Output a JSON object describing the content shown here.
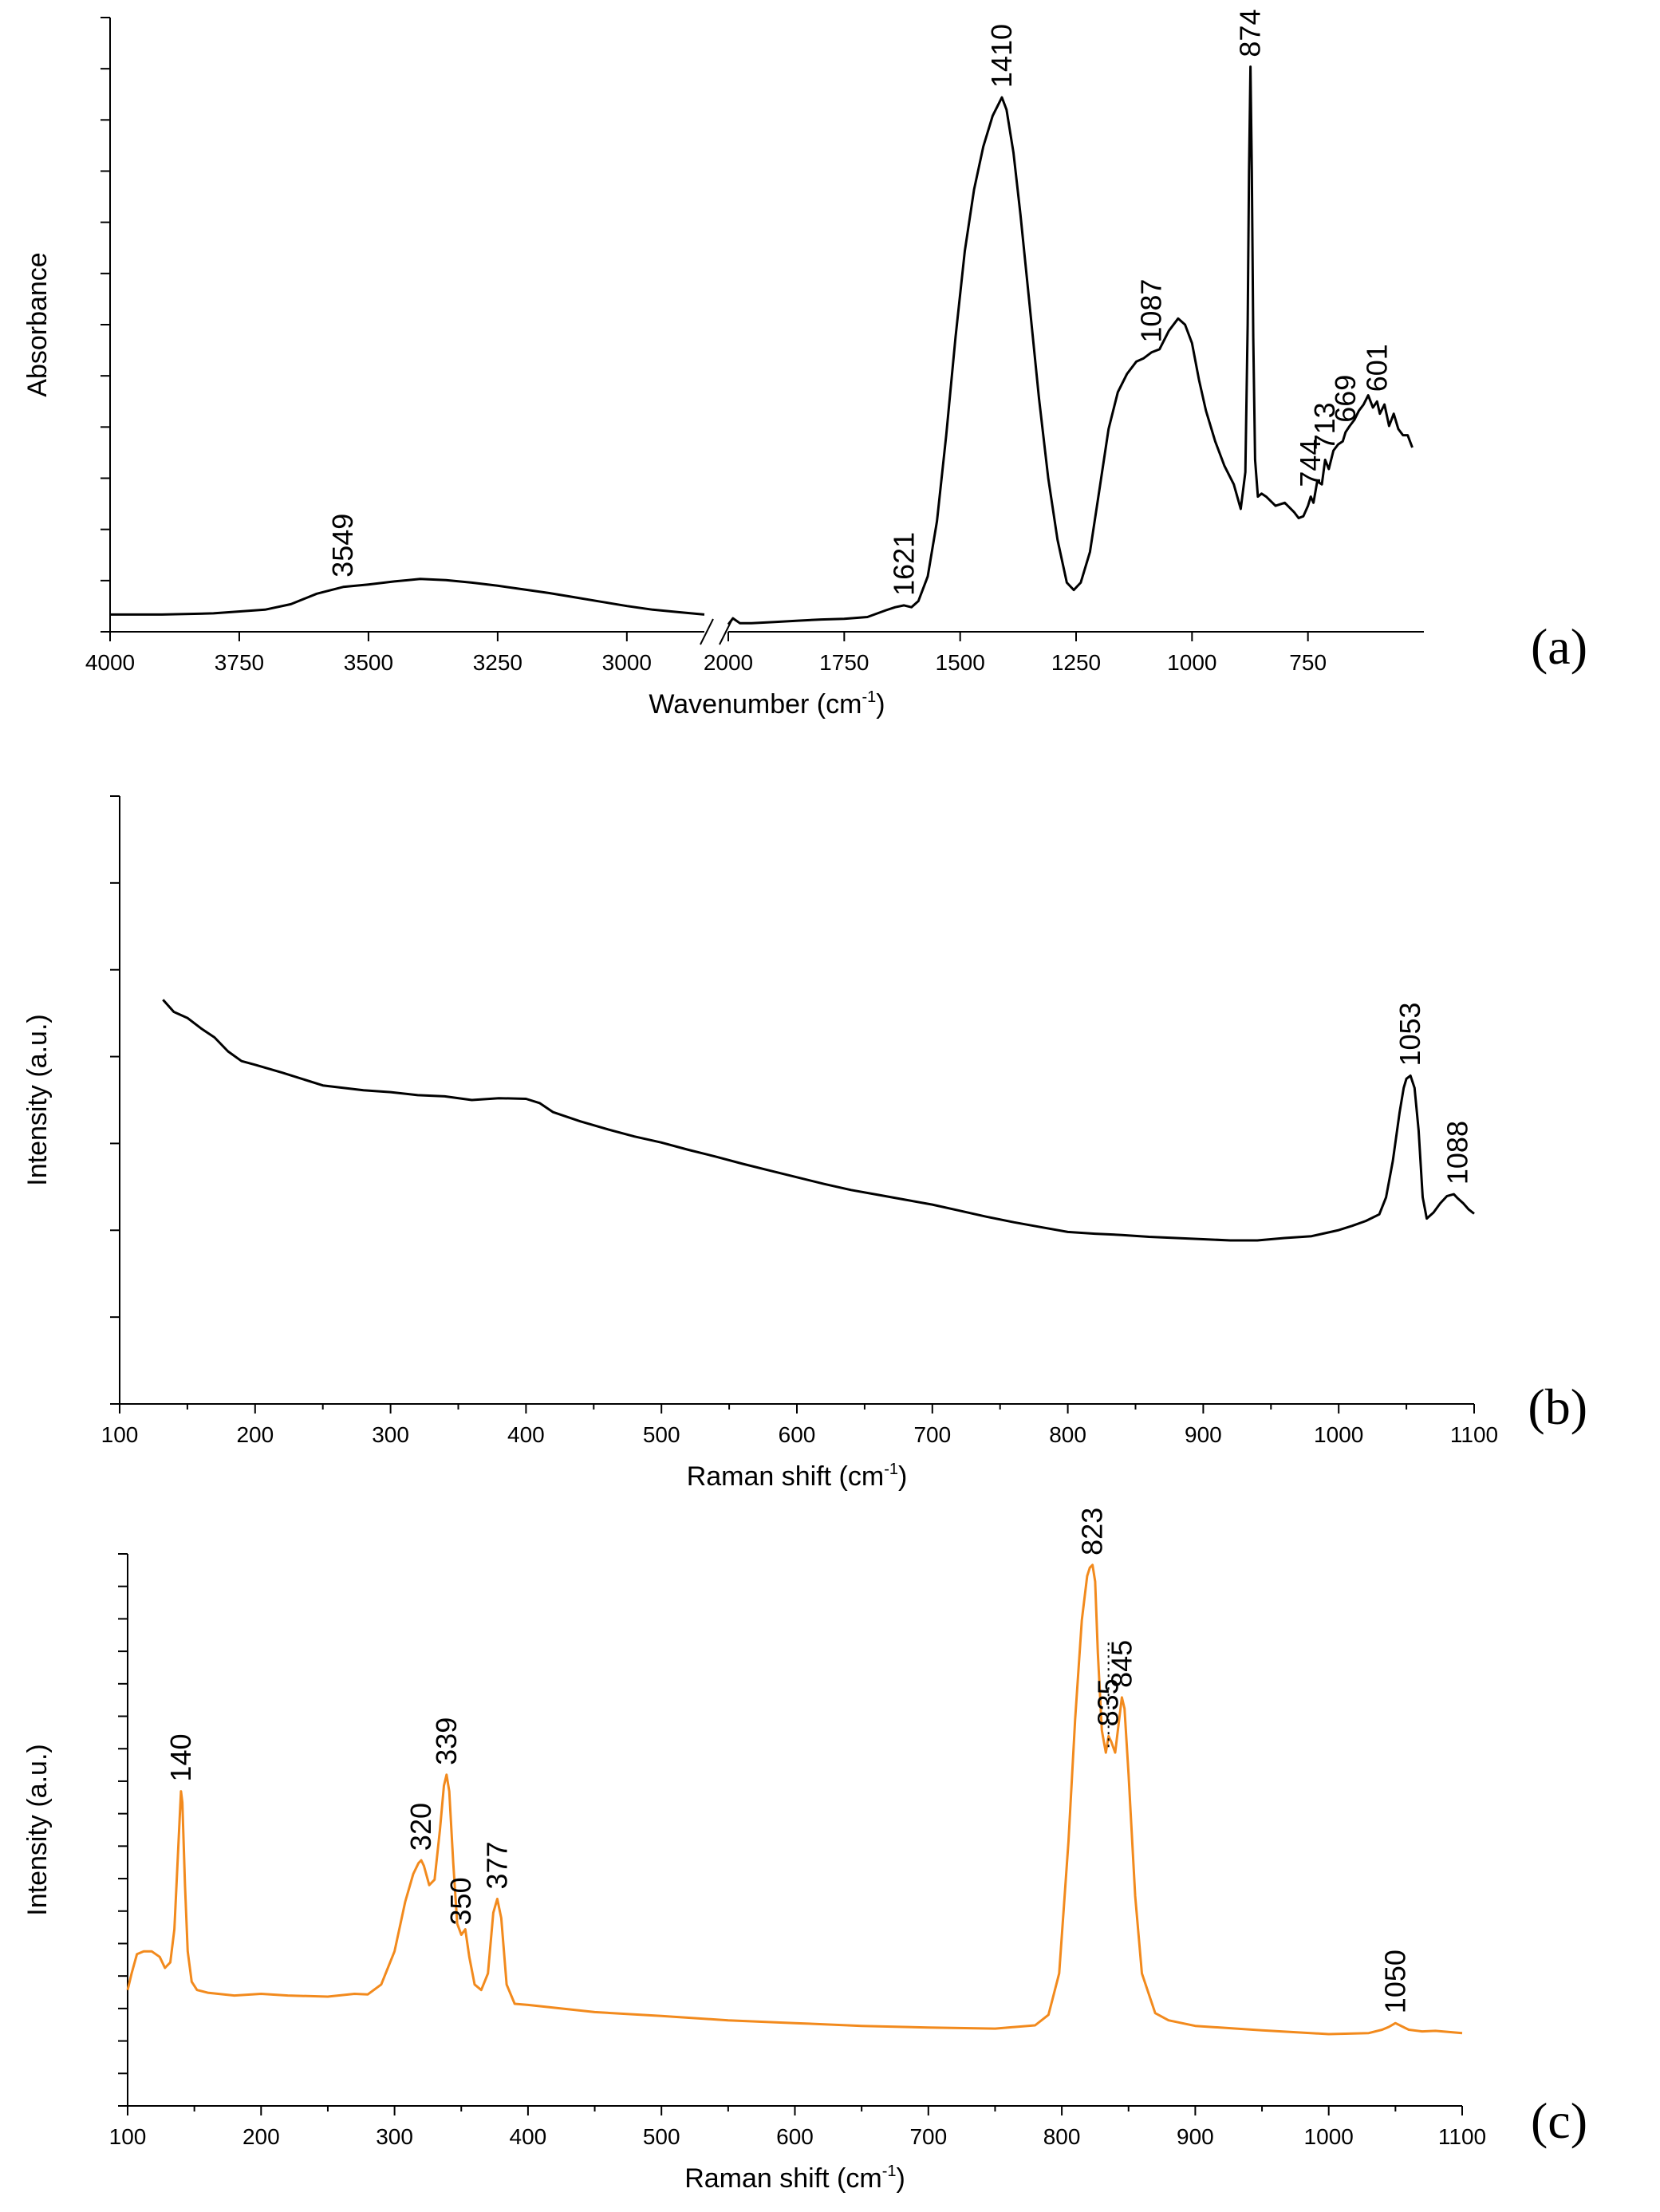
{
  "chart_data": [
    {
      "id": "a",
      "type": "line",
      "panel_label": "(a)",
      "xlabel": "Wavenumber (cm",
      "xlabel_sup": "-1",
      "xlabel_tail": ")",
      "ylabel": "Absorbance",
      "color": "#000000",
      "xlim": [
        4000,
        500
      ],
      "axis_break": [
        2850,
        2000
      ],
      "ylim": [
        0,
        100
      ],
      "y_minor_tick_count": 12,
      "x_ticks": [
        4000,
        3750,
        3500,
        3250,
        3000,
        2000,
        1750,
        1500,
        1250,
        1000,
        750
      ],
      "x_tick_labels": [
        "4000",
        "3750",
        "3500",
        "3250",
        "3000",
        "2000",
        "1750",
        "1500",
        "1250",
        "1000",
        "750"
      ],
      "series": [
        {
          "name": "FTIR spectrum",
          "x": [
            4000,
            3900,
            3800,
            3700,
            3650,
            3600,
            3549,
            3500,
            3450,
            3400,
            3350,
            3300,
            3250,
            3200,
            3150,
            3100,
            3050,
            3000,
            2950,
            2900,
            2850
          ],
          "y": [
            2.8,
            2.8,
            3.0,
            3.6,
            4.5,
            6.2,
            7.3,
            7.7,
            8.2,
            8.6,
            8.4,
            8.0,
            7.5,
            6.9,
            6.3,
            5.6,
            4.9,
            4.2,
            3.6,
            3.2,
            2.8
          ]
        },
        {
          "name": "FTIR spectrum (low range)",
          "x": [
            2000,
            1990,
            1975,
            1950,
            1900,
            1850,
            1800,
            1750,
            1700,
            1660,
            1640,
            1621,
            1605,
            1590,
            1570,
            1550,
            1530,
            1510,
            1490,
            1470,
            1450,
            1430,
            1410,
            1400,
            1385,
            1370,
            1350,
            1330,
            1310,
            1290,
            1270,
            1255,
            1240,
            1220,
            1200,
            1180,
            1160,
            1140,
            1120,
            1105,
            1087,
            1070,
            1050,
            1030,
            1015,
            1000,
            985,
            970,
            950,
            930,
            910,
            895,
            885,
            880,
            877,
            874,
            871,
            868,
            864,
            858,
            850,
            840,
            820,
            800,
            780,
            770,
            760,
            750,
            744,
            738,
            730,
            720,
            713,
            705,
            695,
            685,
            675,
            669,
            660,
            650,
            640,
            630,
            620,
            610,
            601,
            595,
            585,
            575,
            565,
            555,
            545,
            535,
            525
          ],
          "y": [
            1.2,
            2.2,
            1.4,
            1.4,
            1.6,
            1.8,
            2.0,
            2.1,
            2.4,
            3.5,
            4.0,
            4.3,
            4.0,
            5.0,
            9.0,
            18.0,
            32.0,
            48.0,
            62.0,
            72.0,
            79.0,
            84.0,
            87.0,
            85.0,
            78.0,
            68.0,
            53.0,
            38.0,
            25.0,
            15.0,
            8.0,
            6.8,
            8.0,
            13.0,
            23.0,
            33.0,
            39.0,
            42.0,
            44.0,
            44.5,
            45.5,
            46.0,
            49.0,
            51.0,
            50.0,
            47.0,
            41.0,
            36.0,
            31.0,
            27.0,
            24.0,
            20.0,
            26.0,
            50.0,
            75.0,
            92.0,
            75.0,
            48.0,
            28.0,
            22.0,
            22.5,
            22.0,
            20.5,
            21.0,
            19.5,
            18.5,
            18.8,
            20.5,
            22.0,
            21.0,
            24.5,
            24.0,
            28.0,
            26.5,
            29.5,
            30.5,
            31.0,
            32.5,
            33.5,
            34.5,
            36.0,
            37.0,
            38.5,
            36.5,
            37.5,
            35.5,
            37.0,
            33.5,
            35.5,
            33.0,
            32.0,
            32.0,
            30.0
          ]
        }
      ],
      "peak_labels": [
        {
          "x": 3549,
          "y": 7.3,
          "text": "3549"
        },
        {
          "x": 1621,
          "y": 4.3,
          "text": "1621"
        },
        {
          "x": 1410,
          "y": 87.0,
          "text": "1410"
        },
        {
          "x": 1087,
          "y": 45.5,
          "text": "1087"
        },
        {
          "x": 874,
          "y": 92.0,
          "text": "874"
        },
        {
          "x": 744,
          "y": 22.0,
          "text": "744"
        },
        {
          "x": 713,
          "y": 28.0,
          "text": "713"
        },
        {
          "x": 669,
          "y": 32.5,
          "text": "669"
        },
        {
          "x": 601,
          "y": 37.5,
          "text": "601"
        }
      ]
    },
    {
      "id": "b",
      "type": "line",
      "panel_label": "(b)",
      "xlabel": "Raman shift (cm",
      "xlabel_sup": "-1",
      "xlabel_tail": ")",
      "ylabel": "Intensity (a.u.)",
      "color": "#000000",
      "xlim": [
        100,
        1100
      ],
      "ylim": [
        0,
        100
      ],
      "y_minor_tick_count": 7,
      "x_ticks": [
        100,
        200,
        300,
        400,
        500,
        600,
        700,
        800,
        900,
        1000,
        1100
      ],
      "x_tick_labels": [
        "100",
        "200",
        "300",
        "400",
        "500",
        "600",
        "700",
        "800",
        "900",
        "1000",
        "1100"
      ],
      "series": [
        {
          "name": "Raman spectrum",
          "x": [
            132,
            140,
            150,
            160,
            170,
            180,
            190,
            200,
            220,
            250,
            280,
            300,
            320,
            340,
            360,
            380,
            400,
            410,
            420,
            440,
            460,
            480,
            500,
            520,
            540,
            560,
            580,
            600,
            620,
            640,
            660,
            680,
            700,
            720,
            740,
            760,
            780,
            800,
            820,
            840,
            860,
            880,
            900,
            920,
            940,
            960,
            980,
            1000,
            1010,
            1020,
            1030,
            1035,
            1040,
            1045,
            1048,
            1050,
            1053,
            1056,
            1059,
            1062,
            1065,
            1070,
            1075,
            1080,
            1085,
            1088,
            1092,
            1096,
            1100
          ],
          "y": [
            66.5,
            64.5,
            63.5,
            61.8,
            60.3,
            58.0,
            56.4,
            55.8,
            54.5,
            52.4,
            51.6,
            51.3,
            50.8,
            50.6,
            50.0,
            50.3,
            50.2,
            49.5,
            48.0,
            46.5,
            45.2,
            44.0,
            43.0,
            41.8,
            40.7,
            39.5,
            38.4,
            37.3,
            36.2,
            35.2,
            34.4,
            33.6,
            32.8,
            31.8,
            30.8,
            29.9,
            29.1,
            28.3,
            28.0,
            27.8,
            27.5,
            27.3,
            27.1,
            26.9,
            26.9,
            27.3,
            27.6,
            28.6,
            29.3,
            30.1,
            31.2,
            34.0,
            40.0,
            48.0,
            52.0,
            53.5,
            54.0,
            52.0,
            45.0,
            34.0,
            30.5,
            31.5,
            33.0,
            34.2,
            34.5,
            33.8,
            33.0,
            32.0,
            31.3
          ]
        }
      ],
      "peak_labels": [
        {
          "x": 1053,
          "y": 54.0,
          "text": "1053"
        },
        {
          "x": 1088,
          "y": 34.5,
          "text": "1088"
        }
      ]
    },
    {
      "id": "c",
      "type": "line",
      "panel_label": "(c)",
      "xlabel": "Raman shift (cm",
      "xlabel_sup": "-1",
      "xlabel_tail": ")",
      "ylabel": "Intensity (a.u.)",
      "color": "#f28a1d",
      "xlim": [
        100,
        1100
      ],
      "ylim": [
        0,
        100
      ],
      "y_minor_tick_count": 17,
      "x_ticks": [
        100,
        200,
        300,
        400,
        500,
        600,
        700,
        800,
        900,
        1000,
        1100
      ],
      "x_tick_labels": [
        "100",
        "200",
        "300",
        "400",
        "500",
        "600",
        "700",
        "800",
        "900",
        "1000",
        "1100"
      ],
      "series": [
        {
          "name": "Raman spectrum (orange)",
          "x": [
            100,
            103,
            107,
            112,
            118,
            124,
            128,
            132,
            135,
            137,
            139,
            140,
            141,
            143,
            145,
            148,
            152,
            160,
            180,
            200,
            220,
            250,
            270,
            280,
            290,
            300,
            308,
            314,
            318,
            320,
            322,
            326,
            330,
            334,
            337,
            339,
            341,
            344,
            347,
            350,
            353,
            356,
            360,
            365,
            370,
            374,
            377,
            380,
            384,
            390,
            400,
            450,
            500,
            550,
            600,
            650,
            700,
            750,
            780,
            790,
            798,
            805,
            810,
            815,
            819,
            821,
            823,
            825,
            827,
            830,
            833,
            835,
            837,
            840,
            843,
            845,
            847,
            850,
            855,
            860,
            870,
            880,
            900,
            950,
            1000,
            1030,
            1040,
            1045,
            1050,
            1055,
            1060,
            1070,
            1080,
            1100
          ],
          "y": [
            21.0,
            24.0,
            27.5,
            28.0,
            28.0,
            27.0,
            25.0,
            26.0,
            32.0,
            42.0,
            52.0,
            57.0,
            55.0,
            40.0,
            28.0,
            22.5,
            21.0,
            20.5,
            20.0,
            20.3,
            20.0,
            19.8,
            20.3,
            20.2,
            22.0,
            28.0,
            37.0,
            42.0,
            44.0,
            44.5,
            43.5,
            40.0,
            41.0,
            50.0,
            58.0,
            60.0,
            57.0,
            44.0,
            33.0,
            31.0,
            32.0,
            27.0,
            22.0,
            21.0,
            24.0,
            35.0,
            37.5,
            34.0,
            22.0,
            18.5,
            18.3,
            17.0,
            16.3,
            15.5,
            15.0,
            14.5,
            14.2,
            14.0,
            14.6,
            16.5,
            24.0,
            48.0,
            70.0,
            88.0,
            96.0,
            97.5,
            98.0,
            95.0,
            82.0,
            68.0,
            64.0,
            67.0,
            66.0,
            64.0,
            70.0,
            74.0,
            72.0,
            60.0,
            38.0,
            24.0,
            16.8,
            15.5,
            14.5,
            13.7,
            13.0,
            13.2,
            13.8,
            14.3,
            15.0,
            14.4,
            13.8,
            13.5,
            13.6,
            13.2
          ]
        }
      ],
      "peak_labels": [
        {
          "x": 140,
          "y": 57.0,
          "text": "140"
        },
        {
          "x": 320,
          "y": 44.5,
          "text": "320"
        },
        {
          "x": 339,
          "y": 60.0,
          "text": "339"
        },
        {
          "x": 350,
          "y": 31.0,
          "text": "350"
        },
        {
          "x": 377,
          "y": 37.5,
          "text": "377"
        },
        {
          "x": 823,
          "y": 98.0,
          "text": "823"
        },
        {
          "x": 835,
          "y": 67.0,
          "text": "835"
        },
        {
          "x": 845,
          "y": 74.0,
          "text": "845"
        },
        {
          "x": 1050,
          "y": 15.0,
          "text": "1050"
        }
      ],
      "dotted_marker": {
        "x": 835,
        "y_from": 65.0,
        "y_to": 84.0
      }
    }
  ]
}
